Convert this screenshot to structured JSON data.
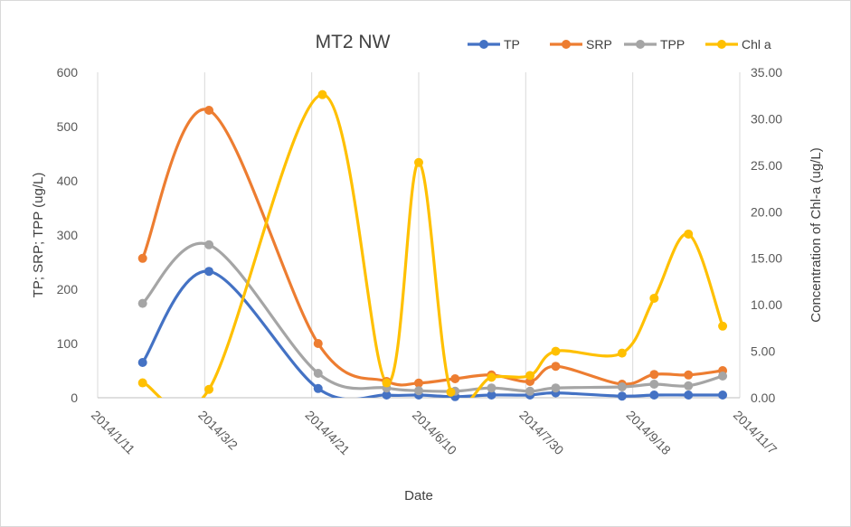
{
  "chart_data": {
    "type": "line",
    "title": "MT2 NW",
    "xlabel": "Date",
    "ylabel_left": "TP; SRP; TPP (ug/L)",
    "ylabel_right": "Concentration of Chl-a (ug/L)",
    "xlim": [
      "2014/1/11",
      "2014/11/7"
    ],
    "ylim_left": [
      0,
      600
    ],
    "ylim_right": [
      0,
      35
    ],
    "x_ticks": [
      "2014/1/11",
      "2014/3/2",
      "2014/4/21",
      "2014/6/10",
      "2014/7/30",
      "2014/9/18",
      "2014/11/7"
    ],
    "y_ticks_left": [
      "0",
      "100",
      "200",
      "300",
      "400",
      "500",
      "600"
    ],
    "y_ticks_right": [
      "0.00",
      "5.00",
      "10.00",
      "15.00",
      "20.00",
      "25.00",
      "30.00",
      "35.00"
    ],
    "grid": "vertical",
    "legend_position": "top-right",
    "smooth": true,
    "series": [
      {
        "name": "TP",
        "axis": "left",
        "color": "#4472C4",
        "points": [
          [
            "2014/2/1",
            65
          ],
          [
            "2014/3/4",
            233
          ],
          [
            "2014/4/24",
            17
          ],
          [
            "2014/5/26",
            5
          ],
          [
            "2014/6/10",
            5
          ],
          [
            "2014/6/27",
            2
          ],
          [
            "2014/7/14",
            5
          ],
          [
            "2014/8/1",
            5
          ],
          [
            "2014/8/13",
            9
          ],
          [
            "2014/9/13",
            3
          ],
          [
            "2014/9/28",
            5
          ],
          [
            "2014/10/14",
            5
          ],
          [
            "2014/10/30",
            5
          ]
        ]
      },
      {
        "name": "SRP",
        "axis": "left",
        "color": "#ED7D31",
        "points": [
          [
            "2014/2/1",
            257
          ],
          [
            "2014/3/4",
            530
          ],
          [
            "2014/4/24",
            100
          ],
          [
            "2014/5/26",
            30
          ],
          [
            "2014/6/10",
            27
          ],
          [
            "2014/6/27",
            35
          ],
          [
            "2014/7/14",
            42
          ],
          [
            "2014/8/1",
            30
          ],
          [
            "2014/8/13",
            58
          ],
          [
            "2014/9/13",
            25
          ],
          [
            "2014/9/28",
            43
          ],
          [
            "2014/10/14",
            42
          ],
          [
            "2014/10/30",
            50
          ]
        ]
      },
      {
        "name": "TPP",
        "axis": "left",
        "color": "#A5A5A5",
        "points": [
          [
            "2014/2/1",
            174
          ],
          [
            "2014/3/4",
            282
          ],
          [
            "2014/4/24",
            45
          ],
          [
            "2014/5/26",
            18
          ],
          [
            "2014/6/10",
            13
          ],
          [
            "2014/6/27",
            12
          ],
          [
            "2014/7/14",
            18
          ],
          [
            "2014/8/1",
            12
          ],
          [
            "2014/8/13",
            18
          ],
          [
            "2014/9/13",
            20
          ],
          [
            "2014/9/28",
            25
          ],
          [
            "2014/10/14",
            22
          ],
          [
            "2014/10/30",
            40
          ]
        ]
      },
      {
        "name": "Chl a",
        "axis": "right",
        "color": "#FFC000",
        "points": [
          [
            "2014/2/1",
            1.6
          ],
          [
            "2014/3/4",
            0.9
          ],
          [
            "2014/4/26",
            32.6
          ],
          [
            "2014/5/26",
            1.6
          ],
          [
            "2014/6/10",
            25.3
          ],
          [
            "2014/6/25",
            0.6
          ],
          [
            "2014/7/14",
            2.2
          ],
          [
            "2014/8/1",
            2.4
          ],
          [
            "2014/8/13",
            5.0
          ],
          [
            "2014/9/13",
            4.8
          ],
          [
            "2014/9/28",
            10.7
          ],
          [
            "2014/10/14",
            17.6
          ],
          [
            "2014/10/30",
            7.7
          ]
        ]
      }
    ]
  }
}
